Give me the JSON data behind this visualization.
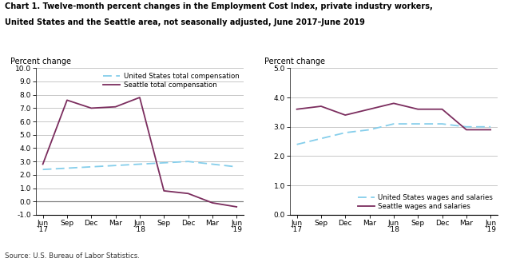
{
  "title_line1": "Chart 1. Twelve-month percent changes in the Employment Cost Index, private industry workers,",
  "title_line2": "United States and the Seattle area, not seasonally adjusted, June 2017–June 2019",
  "source": "Source: U.S. Bureau of Labor Statistics.",
  "x_labels": [
    "Jun\n'17",
    "Sep",
    "Dec",
    "Mar",
    "Jun\n'18",
    "Sep",
    "Dec",
    "Mar",
    "Jun\n'19"
  ],
  "x_positions": [
    0,
    1,
    2,
    3,
    4,
    5,
    6,
    7,
    8
  ],
  "left": {
    "ylabel": "Percent change",
    "ylim": [
      -1.0,
      10.0
    ],
    "yticks": [
      -1.0,
      0.0,
      1.0,
      2.0,
      3.0,
      4.0,
      5.0,
      6.0,
      7.0,
      8.0,
      9.0,
      10.0
    ],
    "us_total_comp": [
      2.4,
      2.5,
      2.6,
      2.7,
      2.8,
      2.9,
      3.0,
      2.8,
      2.6
    ],
    "seattle_total_comp": [
      2.8,
      7.6,
      7.0,
      7.1,
      7.8,
      0.8,
      0.6,
      -0.1,
      -0.4
    ],
    "us_color": "#85CEEB",
    "seattle_color": "#7B2D5E",
    "legend_us": "United States total compensation",
    "legend_seattle": "Seattle total compensation"
  },
  "right": {
    "ylabel": "Percent change",
    "ylim": [
      0.0,
      5.0
    ],
    "yticks": [
      0.0,
      1.0,
      2.0,
      3.0,
      4.0,
      5.0
    ],
    "us_wages": [
      2.4,
      2.6,
      2.8,
      2.9,
      3.1,
      3.1,
      3.1,
      3.0,
      3.0
    ],
    "seattle_wages": [
      3.6,
      3.7,
      3.4,
      3.6,
      3.8,
      3.6,
      3.6,
      2.9,
      2.9
    ],
    "us_color": "#85CEEB",
    "seattle_color": "#7B2D5E",
    "legend_us": "United States wages and salaries",
    "legend_seattle": "Seattle wages and salaries"
  }
}
